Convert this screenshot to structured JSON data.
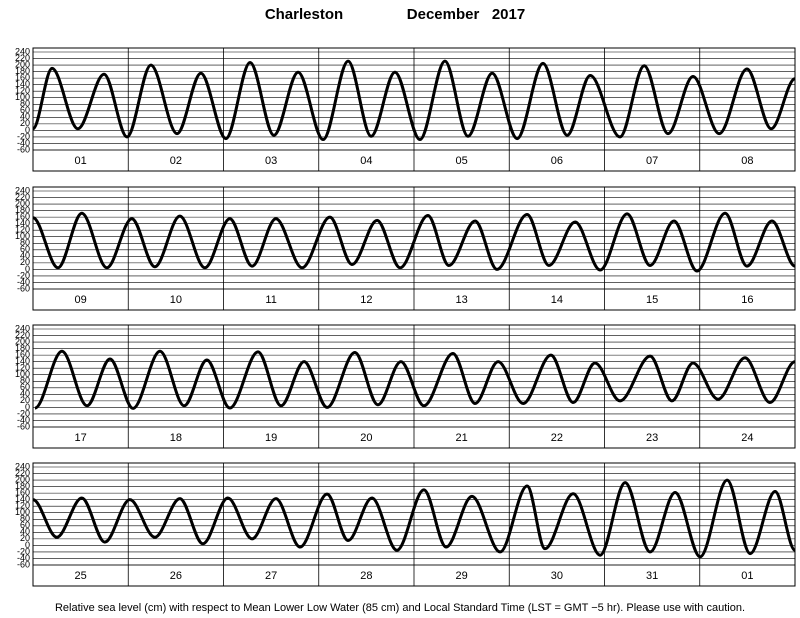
{
  "header": {
    "station": "Charleston",
    "month": "December   2017"
  },
  "footer": "Relative sea level (cm) with respect to Mean Lower Low Water (85 cm) and Local Standard Time (LST = GMT −5 hr). Please use with caution.",
  "chart_data": [
    {
      "type": "line",
      "categories": [
        "01",
        "02",
        "03",
        "04",
        "05",
        "06",
        "07",
        "08"
      ],
      "xlim": [
        0,
        192
      ],
      "ylim": [
        -60,
        240
      ],
      "yticks": [
        240,
        220,
        200,
        180,
        160,
        140,
        120,
        100,
        80,
        60,
        40,
        20,
        0,
        -20,
        -40,
        -60
      ],
      "color": "#000000",
      "x": [
        0,
        4.8,
        11.3,
        17.9,
        23.7,
        29.7,
        36.3,
        42.3,
        48.6,
        54.7,
        60.7,
        66.8,
        73.1,
        79.4,
        85.2,
        91.2,
        97.5,
        103.8,
        109.6,
        115.7,
        122.0,
        128.5,
        134.6,
        140.4,
        147.9,
        154.0,
        160.0,
        166.3,
        172.9,
        179.9,
        186.0,
        192
      ],
      "values": [
        5,
        190,
        5,
        172,
        -20,
        200,
        -10,
        175,
        -25,
        208,
        -15,
        178,
        -28,
        212,
        -18,
        178,
        -28,
        212,
        -18,
        175,
        -25,
        205,
        -15,
        168,
        -20,
        198,
        -10,
        165,
        -10,
        188,
        5,
        158
      ]
    },
    {
      "type": "line",
      "categories": [
        "09",
        "10",
        "11",
        "12",
        "13",
        "14",
        "15",
        "16"
      ],
      "xlim": [
        0,
        192
      ],
      "ylim": [
        -60,
        240
      ],
      "yticks": [
        240,
        220,
        200,
        180,
        160,
        140,
        120,
        100,
        80,
        60,
        40,
        20,
        0,
        -20,
        -40,
        -60
      ],
      "color": "#000000",
      "x": [
        0,
        6.3,
        12.3,
        18.6,
        24.9,
        30.7,
        37.0,
        43.3,
        49.6,
        55.2,
        61.2,
        67.8,
        74.8,
        80.4,
        86.7,
        92.5,
        99.5,
        104.8,
        111.4,
        116.9,
        124.5,
        130.0,
        136.6,
        142.9,
        149.7,
        155.5,
        161.5,
        167.3,
        174.4,
        179.9,
        186.2,
        192
      ],
      "values": [
        158,
        5,
        172,
        5,
        155,
        8,
        163,
        5,
        155,
        10,
        155,
        5,
        160,
        15,
        150,
        5,
        165,
        12,
        148,
        0,
        168,
        12,
        145,
        -2,
        170,
        12,
        148,
        -5,
        172,
        10,
        148,
        10
      ]
    },
    {
      "type": "line",
      "categories": [
        "17",
        "18",
        "19",
        "20",
        "21",
        "22",
        "23",
        "24"
      ],
      "xlim": [
        0,
        192
      ],
      "ylim": [
        -60,
        240
      ],
      "yticks": [
        240,
        220,
        200,
        180,
        160,
        140,
        120,
        100,
        80,
        60,
        40,
        20,
        0,
        -20,
        -40,
        -60
      ],
      "color": "#000000",
      "x": [
        0.5,
        7.3,
        13.6,
        19.4,
        25.2,
        32.0,
        38.1,
        43.8,
        49.6,
        56.7,
        62.5,
        68.3,
        74.1,
        81.1,
        86.9,
        92.7,
        98.5,
        105.8,
        111.4,
        117.2,
        123.5,
        130.5,
        136.1,
        141.6,
        147.9,
        155.5,
        161.0,
        166.3,
        172.6,
        179.4,
        185.7,
        192
      ],
      "values": [
        -2,
        172,
        5,
        148,
        -3,
        172,
        5,
        145,
        -2,
        170,
        5,
        140,
        0,
        168,
        8,
        140,
        5,
        165,
        12,
        140,
        12,
        160,
        15,
        136,
        20,
        157,
        20,
        136,
        25,
        152,
        15,
        140
      ]
    },
    {
      "type": "line",
      "categories": [
        "25",
        "26",
        "27",
        "28",
        "29",
        "30",
        "31",
        "01"
      ],
      "xlim": [
        0,
        192
      ],
      "ylim": [
        -60,
        240
      ],
      "yticks": [
        240,
        220,
        200,
        180,
        160,
        140,
        120,
        100,
        80,
        60,
        40,
        20,
        0,
        -20,
        -40,
        -60
      ],
      "color": "#000000",
      "x": [
        0,
        6.0,
        12.3,
        18.1,
        24.4,
        30.7,
        37.0,
        42.8,
        49.1,
        55.2,
        61.2,
        67.3,
        74.1,
        79.4,
        85.4,
        91.7,
        98.5,
        104.1,
        110.6,
        117.7,
        124.5,
        129.0,
        136.1,
        142.9,
        149.2,
        155.5,
        161.8,
        168.1,
        174.9,
        180.7,
        187.0,
        192
      ],
      "values": [
        140,
        25,
        145,
        10,
        140,
        25,
        143,
        5,
        145,
        20,
        143,
        -5,
        157,
        15,
        145,
        -15,
        170,
        -5,
        150,
        -20,
        182,
        -10,
        158,
        -30,
        192,
        -20,
        162,
        -35,
        200,
        -25,
        165,
        -15
      ]
    }
  ]
}
